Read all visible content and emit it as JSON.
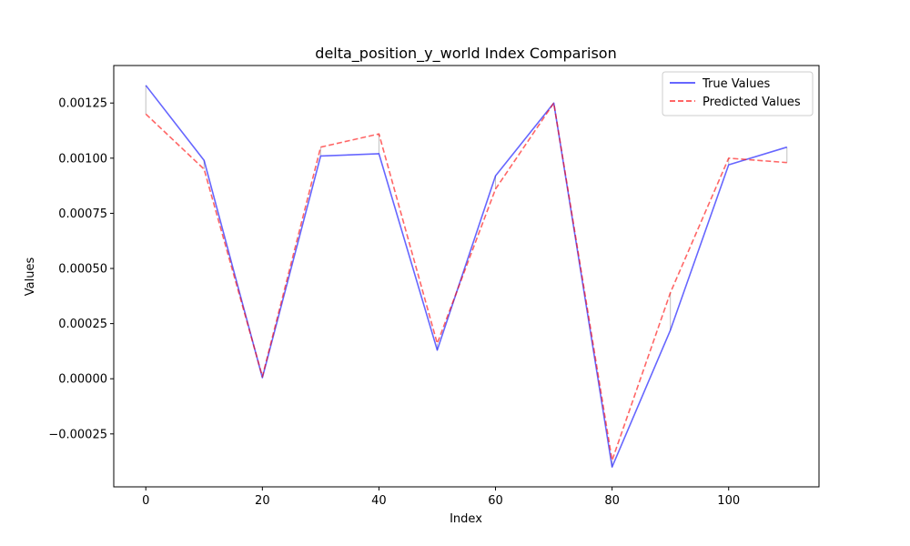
{
  "chart_data": {
    "type": "line",
    "title": "delta_position_y_world Index Comparison",
    "xlabel": "Index",
    "ylabel": "Values",
    "x": [
      0,
      10,
      20,
      30,
      40,
      50,
      60,
      70,
      80,
      90,
      100,
      110
    ],
    "xlim": [
      -5.5,
      115.5
    ],
    "ylim": [
      -0.00049,
      0.00142
    ],
    "x_ticks": [
      0,
      20,
      40,
      60,
      80,
      100
    ],
    "x_tick_labels": [
      "0",
      "20",
      "40",
      "60",
      "80",
      "100"
    ],
    "y_ticks": [
      -0.00025,
      0,
      0.00025,
      0.0005,
      0.00075,
      0.001,
      0.00125
    ],
    "y_tick_labels": [
      "−0.00025",
      "0.00000",
      "0.00025",
      "0.00050",
      "0.00075",
      "0.00100",
      "0.00125"
    ],
    "grid": false,
    "legend_position": "top-right",
    "series": [
      {
        "name": "True Values",
        "color": "#0000ff",
        "dash": "solid",
        "values": [
          0.00133,
          0.00099,
          5e-06,
          0.00101,
          0.00102,
          0.00013,
          0.00092,
          0.00125,
          -0.0004,
          0.00022,
          0.00097,
          0.00105
        ]
      },
      {
        "name": "Predicted Values",
        "color": "#ff0000",
        "dash": "dashed",
        "values": [
          0.0012,
          0.00095,
          1e-05,
          0.00105,
          0.00111,
          0.00016,
          0.00086,
          0.00125,
          -0.00037,
          0.00039,
          0.001,
          0.00098
        ]
      }
    ],
    "error_connector_color": "#999999"
  }
}
